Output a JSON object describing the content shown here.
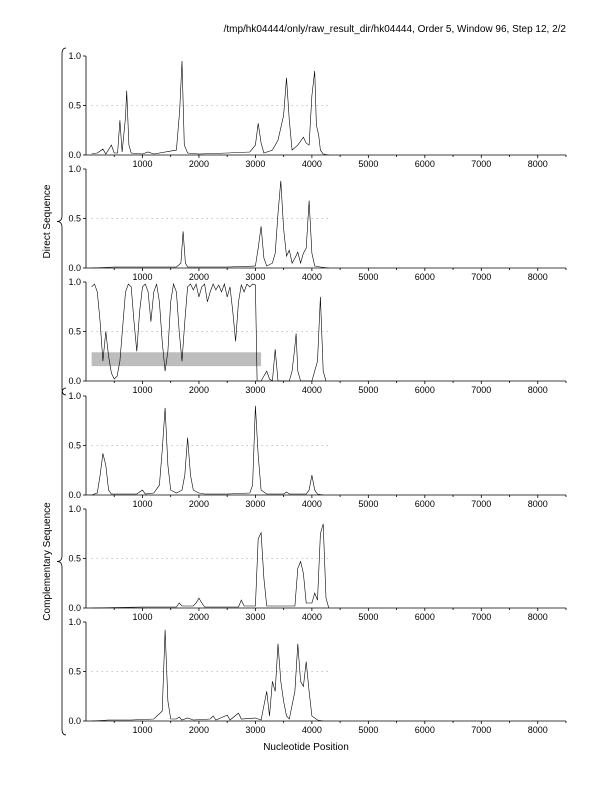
{
  "header": {
    "title": "/tmp/hk04444/only/raw_result_dir/hk04444, Order 5, Window 96, Step 12, 2/2"
  },
  "chart_data": {
    "type": "line",
    "xlabel": "Nucleotide Position",
    "xlim": [
      0,
      8500
    ],
    "ylim": [
      0,
      1.0
    ],
    "x_ticks": [
      1000,
      2000,
      3000,
      4000,
      5000,
      6000,
      7000,
      8000
    ],
    "y_ticks": [
      "0.0",
      "0.5",
      "1.0"
    ],
    "groups": [
      {
        "label": "Direct Sequence",
        "panels": [
          0,
          1,
          2
        ]
      },
      {
        "label": "Complementary Sequence",
        "panels": [
          3,
          4,
          5
        ]
      }
    ],
    "marker_y": 0.5,
    "marker_range": [
      100,
      4350
    ],
    "panels": [
      {
        "series": [
          [
            100,
            0.01
          ],
          [
            200,
            0.02
          ],
          [
            300,
            0.06
          ],
          [
            350,
            0.01
          ],
          [
            450,
            0.1
          ],
          [
            500,
            0.02
          ],
          [
            560,
            0.02
          ],
          [
            600,
            0.35
          ],
          [
            640,
            0.03
          ],
          [
            700,
            0.38
          ],
          [
            720,
            0.65
          ],
          [
            760,
            0.1
          ],
          [
            800,
            0.02
          ],
          [
            1000,
            0.01
          ],
          [
            1100,
            0.03
          ],
          [
            1200,
            0.01
          ],
          [
            1600,
            0.05
          ],
          [
            1660,
            0.45
          ],
          [
            1700,
            0.95
          ],
          [
            1740,
            0.1
          ],
          [
            1800,
            0.02
          ],
          [
            2000,
            0.01
          ],
          [
            2500,
            0.02
          ],
          [
            2900,
            0.03
          ],
          [
            3000,
            0.1
          ],
          [
            3050,
            0.32
          ],
          [
            3100,
            0.12
          ],
          [
            3150,
            0.02
          ],
          [
            3300,
            0.05
          ],
          [
            3400,
            0.15
          ],
          [
            3500,
            0.4
          ],
          [
            3550,
            0.78
          ],
          [
            3600,
            0.35
          ],
          [
            3650,
            0.05
          ],
          [
            3750,
            0.1
          ],
          [
            3850,
            0.18
          ],
          [
            3900,
            0.12
          ],
          [
            3950,
            0.1
          ],
          [
            4000,
            0.6
          ],
          [
            4050,
            0.85
          ],
          [
            4080,
            0.3
          ],
          [
            4120,
            0.2
          ],
          [
            4150,
            0.05
          ],
          [
            4200,
            0.01
          ],
          [
            4300,
            0.0
          ]
        ]
      },
      {
        "series": [
          [
            100,
            0.0
          ],
          [
            500,
            0.01
          ],
          [
            1000,
            0.01
          ],
          [
            1600,
            0.01
          ],
          [
            1680,
            0.05
          ],
          [
            1720,
            0.37
          ],
          [
            1760,
            0.05
          ],
          [
            1800,
            0.01
          ],
          [
            2500,
            0.01
          ],
          [
            3000,
            0.02
          ],
          [
            3050,
            0.2
          ],
          [
            3100,
            0.42
          ],
          [
            3150,
            0.1
          ],
          [
            3200,
            0.02
          ],
          [
            3300,
            0.05
          ],
          [
            3350,
            0.15
          ],
          [
            3400,
            0.55
          ],
          [
            3450,
            0.88
          ],
          [
            3500,
            0.4
          ],
          [
            3550,
            0.12
          ],
          [
            3600,
            0.18
          ],
          [
            3650,
            0.05
          ],
          [
            3700,
            0.1
          ],
          [
            3750,
            0.16
          ],
          [
            3800,
            0.05
          ],
          [
            3850,
            0.15
          ],
          [
            3900,
            0.2
          ],
          [
            3950,
            0.68
          ],
          [
            4000,
            0.15
          ],
          [
            4050,
            0.02
          ],
          [
            4150,
            0.01
          ],
          [
            4300,
            0.0
          ]
        ]
      },
      {
        "series": [
          [
            100,
            0.95
          ],
          [
            150,
            0.98
          ],
          [
            200,
            0.9
          ],
          [
            250,
            0.6
          ],
          [
            300,
            0.2
          ],
          [
            350,
            0.5
          ],
          [
            400,
            0.25
          ],
          [
            450,
            0.08
          ],
          [
            500,
            0.02
          ],
          [
            550,
            0.05
          ],
          [
            600,
            0.2
          ],
          [
            650,
            0.55
          ],
          [
            700,
            0.9
          ],
          [
            750,
            0.98
          ],
          [
            800,
            0.95
          ],
          [
            850,
            0.6
          ],
          [
            900,
            0.3
          ],
          [
            950,
            0.7
          ],
          [
            1000,
            0.95
          ],
          [
            1050,
            0.98
          ],
          [
            1100,
            0.9
          ],
          [
            1150,
            0.6
          ],
          [
            1200,
            0.9
          ],
          [
            1250,
            0.98
          ],
          [
            1300,
            0.8
          ],
          [
            1350,
            0.4
          ],
          [
            1400,
            0.1
          ],
          [
            1450,
            0.3
          ],
          [
            1500,
            0.8
          ],
          [
            1550,
            0.98
          ],
          [
            1600,
            0.9
          ],
          [
            1650,
            0.5
          ],
          [
            1700,
            0.2
          ],
          [
            1750,
            0.6
          ],
          [
            1800,
            0.95
          ],
          [
            1850,
            0.98
          ],
          [
            1900,
            0.92
          ],
          [
            1950,
            0.98
          ],
          [
            2000,
            0.85
          ],
          [
            2050,
            0.95
          ],
          [
            2100,
            0.98
          ],
          [
            2150,
            0.8
          ],
          [
            2200,
            0.9
          ],
          [
            2250,
            0.98
          ],
          [
            2300,
            0.92
          ],
          [
            2350,
            0.97
          ],
          [
            2400,
            0.9
          ],
          [
            2450,
            0.98
          ],
          [
            2500,
            0.85
          ],
          [
            2550,
            0.95
          ],
          [
            2600,
            0.7
          ],
          [
            2650,
            0.4
          ],
          [
            2700,
            0.8
          ],
          [
            2750,
            0.97
          ],
          [
            2800,
            0.9
          ],
          [
            2850,
            0.98
          ],
          [
            2900,
            0.95
          ],
          [
            2950,
            0.98
          ],
          [
            3000,
            0.97
          ],
          [
            3030,
            0.0
          ],
          [
            3100,
            0.0
          ],
          [
            3200,
            0.1
          ],
          [
            3250,
            0.02
          ],
          [
            3300,
            0.0
          ],
          [
            3350,
            0.32
          ],
          [
            3400,
            0.0
          ],
          [
            3600,
            0.0
          ],
          [
            3650,
            0.1
          ],
          [
            3700,
            0.35
          ],
          [
            3720,
            0.48
          ],
          [
            3750,
            0.1
          ],
          [
            3800,
            0.0
          ],
          [
            4000,
            0.0
          ],
          [
            4100,
            0.2
          ],
          [
            4150,
            0.85
          ],
          [
            4200,
            0.1
          ],
          [
            4250,
            0.0
          ]
        ],
        "shaded_range": {
          "x": [
            100,
            3100
          ],
          "y": [
            0.15,
            0.29
          ]
        }
      },
      {
        "series": [
          [
            100,
            0.0
          ],
          [
            200,
            0.02
          ],
          [
            250,
            0.2
          ],
          [
            300,
            0.42
          ],
          [
            350,
            0.3
          ],
          [
            400,
            0.05
          ],
          [
            450,
            0.01
          ],
          [
            900,
            0.01
          ],
          [
            1000,
            0.05
          ],
          [
            1050,
            0.01
          ],
          [
            1200,
            0.02
          ],
          [
            1300,
            0.1
          ],
          [
            1350,
            0.45
          ],
          [
            1400,
            0.88
          ],
          [
            1450,
            0.3
          ],
          [
            1500,
            0.05
          ],
          [
            1600,
            0.02
          ],
          [
            1700,
            0.05
          ],
          [
            1750,
            0.2
          ],
          [
            1800,
            0.58
          ],
          [
            1850,
            0.2
          ],
          [
            1900,
            0.05
          ],
          [
            2000,
            0.02
          ],
          [
            2100,
            0.01
          ],
          [
            2500,
            0.01
          ],
          [
            2900,
            0.02
          ],
          [
            2950,
            0.1
          ],
          [
            3000,
            0.9
          ],
          [
            3050,
            0.4
          ],
          [
            3100,
            0.05
          ],
          [
            3200,
            0.01
          ],
          [
            3500,
            0.01
          ],
          [
            3550,
            0.03
          ],
          [
            3600,
            0.01
          ],
          [
            3900,
            0.01
          ],
          [
            3950,
            0.05
          ],
          [
            4000,
            0.2
          ],
          [
            4050,
            0.05
          ],
          [
            4100,
            0.01
          ],
          [
            4200,
            0.0
          ]
        ]
      },
      {
        "series": [
          [
            100,
            0.0
          ],
          [
            1000,
            0.01
          ],
          [
            1600,
            0.01
          ],
          [
            1650,
            0.05
          ],
          [
            1700,
            0.02
          ],
          [
            1900,
            0.02
          ],
          [
            1950,
            0.05
          ],
          [
            2000,
            0.1
          ],
          [
            2050,
            0.05
          ],
          [
            2100,
            0.01
          ],
          [
            2700,
            0.01
          ],
          [
            2750,
            0.08
          ],
          [
            2800,
            0.02
          ],
          [
            3000,
            0.02
          ],
          [
            3050,
            0.7
          ],
          [
            3100,
            0.76
          ],
          [
            3150,
            0.3
          ],
          [
            3200,
            0.02
          ],
          [
            3700,
            0.02
          ],
          [
            3750,
            0.4
          ],
          [
            3800,
            0.47
          ],
          [
            3850,
            0.35
          ],
          [
            3900,
            0.05
          ],
          [
            4000,
            0.05
          ],
          [
            4050,
            0.15
          ],
          [
            4100,
            0.08
          ],
          [
            4150,
            0.75
          ],
          [
            4200,
            0.85
          ],
          [
            4250,
            0.1
          ],
          [
            4300,
            0.0
          ]
        ]
      },
      {
        "series": [
          [
            100,
            0.0
          ],
          [
            400,
            0.01
          ],
          [
            800,
            0.01
          ],
          [
            1200,
            0.02
          ],
          [
            1350,
            0.1
          ],
          [
            1400,
            0.92
          ],
          [
            1450,
            0.2
          ],
          [
            1500,
            0.02
          ],
          [
            1600,
            0.02
          ],
          [
            1650,
            0.04
          ],
          [
            1700,
            0.01
          ],
          [
            1800,
            0.03
          ],
          [
            1900,
            0.01
          ],
          [
            2200,
            0.02
          ],
          [
            2250,
            0.05
          ],
          [
            2300,
            0.01
          ],
          [
            2500,
            0.06
          ],
          [
            2550,
            0.01
          ],
          [
            2700,
            0.08
          ],
          [
            2750,
            0.02
          ],
          [
            3000,
            0.03
          ],
          [
            3100,
            0.01
          ],
          [
            3200,
            0.3
          ],
          [
            3250,
            0.05
          ],
          [
            3300,
            0.4
          ],
          [
            3350,
            0.3
          ],
          [
            3400,
            0.78
          ],
          [
            3450,
            0.4
          ],
          [
            3500,
            0.2
          ],
          [
            3550,
            0.05
          ],
          [
            3600,
            0.02
          ],
          [
            3700,
            0.3
          ],
          [
            3750,
            0.78
          ],
          [
            3800,
            0.4
          ],
          [
            3850,
            0.35
          ],
          [
            3900,
            0.6
          ],
          [
            3950,
            0.3
          ],
          [
            4000,
            0.05
          ],
          [
            4100,
            0.01
          ],
          [
            4200,
            0.0
          ]
        ]
      }
    ]
  }
}
